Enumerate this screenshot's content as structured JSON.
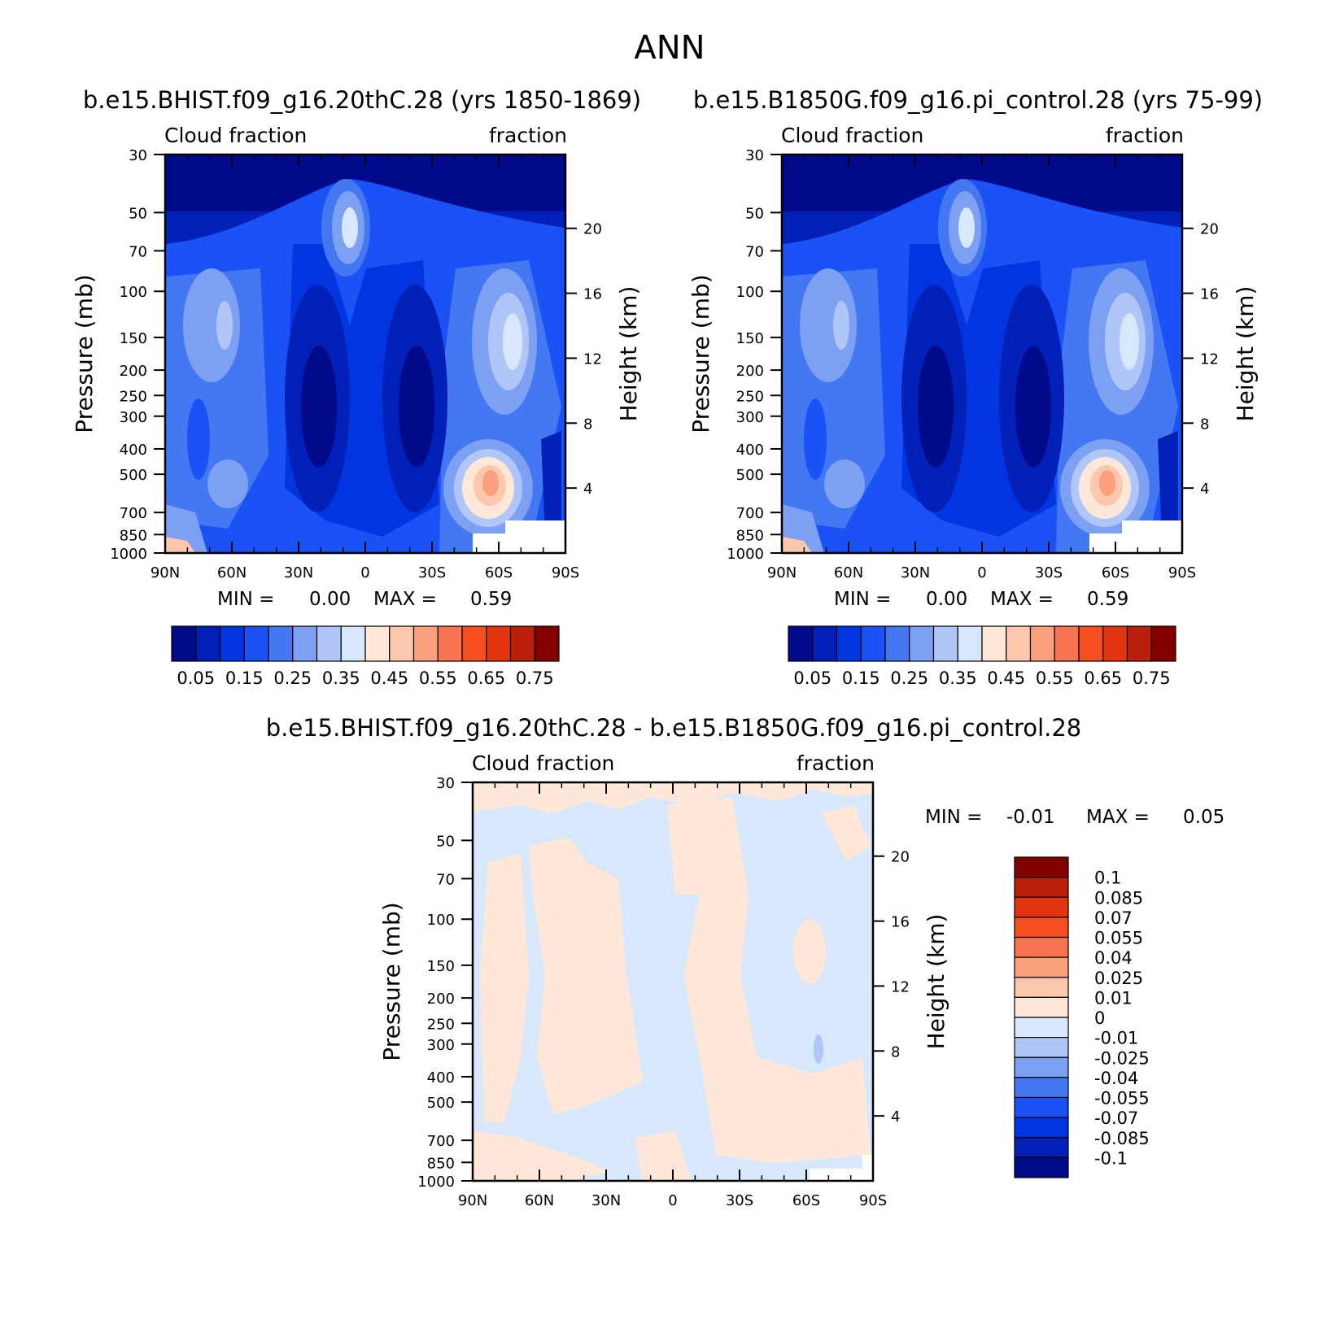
{
  "title": "ANN",
  "chart_data": [
    {
      "type": "heatmap",
      "title": "b.e15.BHIST.f09_g16.20thC.28 (yrs 1850-1869)",
      "left_label": "Cloud fraction",
      "right_label": "fraction",
      "xlabel": "",
      "ylabel": "Pressure (mb)",
      "y2label": "Height (km)",
      "x_ticks": [
        "90N",
        "60N",
        "30N",
        "0",
        "30S",
        "60S",
        "90S"
      ],
      "y_ticks": [
        30,
        50,
        70,
        100,
        150,
        200,
        250,
        300,
        400,
        500,
        700,
        850,
        1000
      ],
      "y2_ticks": [
        20,
        16,
        12,
        8,
        4
      ],
      "ylim": [
        1000,
        30
      ],
      "min_text": "MIN =",
      "min": "0.00",
      "max_text": "MAX =",
      "max": "0.59",
      "colorbar_labels": [
        "0.05",
        "0.15",
        "0.25",
        "0.35",
        "0.45",
        "0.55",
        "0.65",
        "0.75"
      ],
      "colorbar_colors": [
        "#000a8a",
        "#0020b8",
        "#0035e0",
        "#1a52f5",
        "#4478f2",
        "#7ea0f3",
        "#b0c6f8",
        "#d8e8fc",
        "#ffe8d8",
        "#fcc7ac",
        "#faa07d",
        "#f87550",
        "#f54e21",
        "#e33510",
        "#b8200b",
        "#830000"
      ]
    },
    {
      "type": "heatmap",
      "title": "b.e15.B1850G.f09_g16.pi_control.28 (yrs 75-99)",
      "left_label": "Cloud fraction",
      "right_label": "fraction",
      "xlabel": "",
      "ylabel": "Pressure (mb)",
      "y2label": "Height (km)",
      "x_ticks": [
        "90N",
        "60N",
        "30N",
        "0",
        "30S",
        "60S",
        "90S"
      ],
      "y_ticks": [
        30,
        50,
        70,
        100,
        150,
        200,
        250,
        300,
        400,
        500,
        700,
        850,
        1000
      ],
      "y2_ticks": [
        20,
        16,
        12,
        8,
        4
      ],
      "ylim": [
        1000,
        30
      ],
      "min_text": "MIN =",
      "min": "0.00",
      "max_text": "MAX =",
      "max": "0.59",
      "colorbar_labels": [
        "0.05",
        "0.15",
        "0.25",
        "0.35",
        "0.45",
        "0.55",
        "0.65",
        "0.75"
      ],
      "colorbar_colors": [
        "#000a8a",
        "#0020b8",
        "#0035e0",
        "#1a52f5",
        "#4478f2",
        "#7ea0f3",
        "#b0c6f8",
        "#d8e8fc",
        "#ffe8d8",
        "#fcc7ac",
        "#faa07d",
        "#f87550",
        "#f54e21",
        "#e33510",
        "#b8200b",
        "#830000"
      ]
    },
    {
      "type": "heatmap",
      "title": "b.e15.BHIST.f09_g16.20thC.28 - b.e15.B1850G.f09_g16.pi_control.28",
      "left_label": "Cloud fraction",
      "right_label": "fraction",
      "xlabel": "",
      "ylabel": "Pressure (mb)",
      "y2label": "Height (km)",
      "x_ticks": [
        "90N",
        "60N",
        "30N",
        "0",
        "30S",
        "60S",
        "90S"
      ],
      "y_ticks": [
        30,
        50,
        70,
        100,
        150,
        200,
        250,
        300,
        400,
        500,
        700,
        850,
        1000
      ],
      "y2_ticks": [
        20,
        16,
        12,
        8,
        4
      ],
      "ylim": [
        1000,
        30
      ],
      "min_text": "MIN =",
      "min": "-0.01",
      "max_text": "MAX =",
      "max": "0.05",
      "colorbar_labels": [
        "0.1",
        "0.085",
        "0.07",
        "0.055",
        "0.04",
        "0.025",
        "0.01",
        "0",
        "-0.01",
        "-0.025",
        "-0.04",
        "-0.055",
        "-0.07",
        "-0.085",
        "-0.1"
      ],
      "colorbar_colors": [
        "#830000",
        "#b8200b",
        "#e33510",
        "#f54e21",
        "#f87550",
        "#faa07d",
        "#fcc7ac",
        "#ffe8d8",
        "#d8e8fc",
        "#b0c6f8",
        "#7ea0f3",
        "#4478f2",
        "#1a52f5",
        "#0035e0",
        "#0020b8",
        "#000a8a"
      ]
    }
  ]
}
